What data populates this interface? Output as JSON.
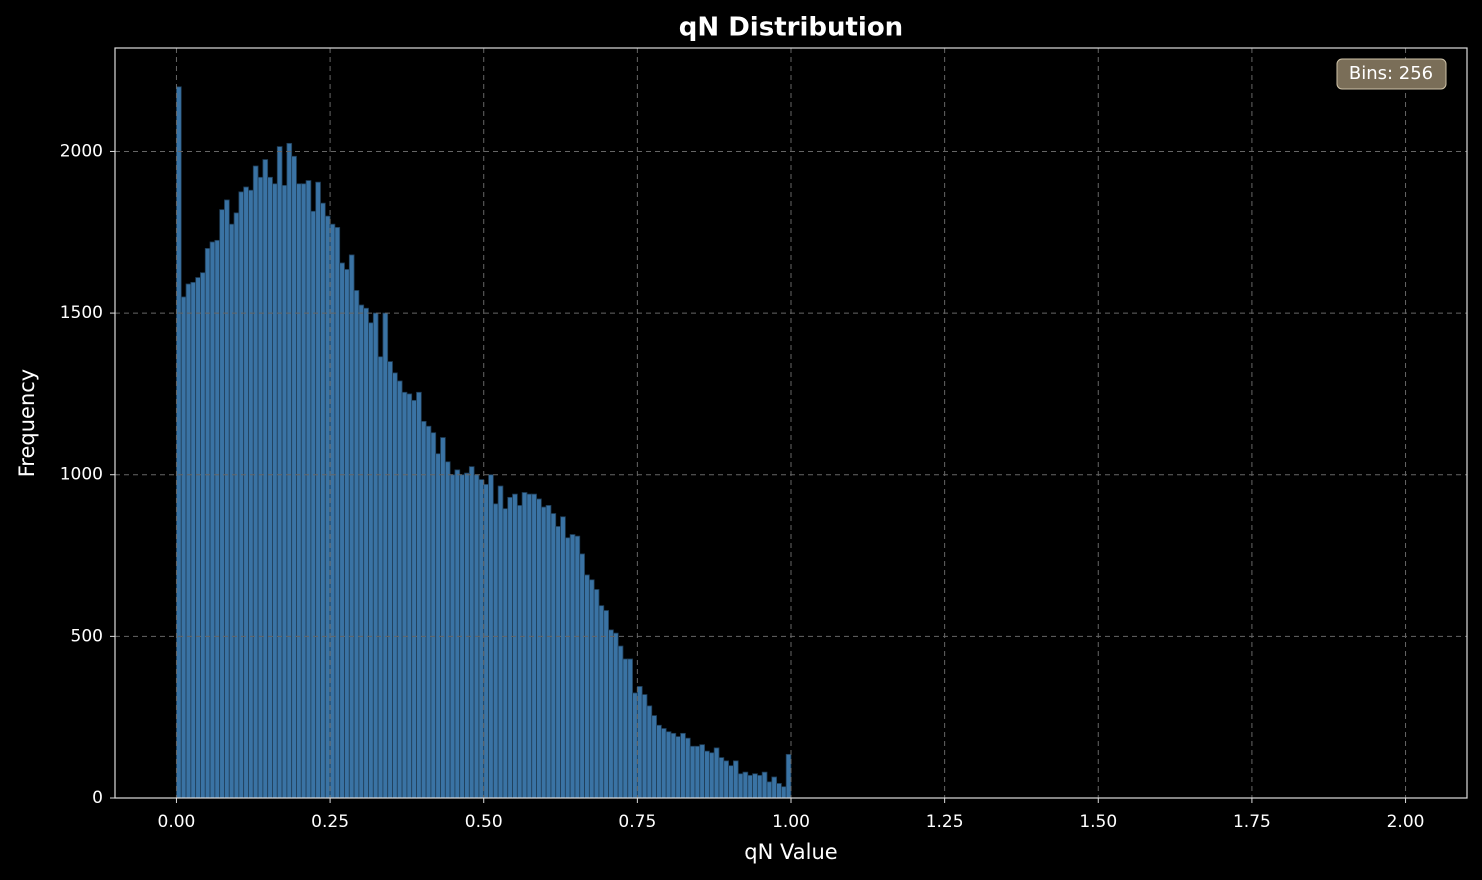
{
  "chart_data": {
    "type": "histogram",
    "title": "qN Distribution",
    "xlabel": "qN Value",
    "ylabel": "Frequency",
    "annotation": "Bins: 256",
    "color": "#3a73a4",
    "edgecolor": "#1f3d57",
    "grid": true,
    "bins": [
      0,
      0.0078125,
      0.015625,
      0.0234375,
      0.03125,
      0.0390625,
      0.046875,
      0.0546875,
      0.0625,
      0.0703125,
      0.078125,
      0.0859375,
      0.09375,
      0.1015625,
      0.109375,
      0.1171875,
      0.125,
      0.1328125,
      0.140625,
      0.1484375,
      0.15625,
      0.1640625,
      0.171875,
      0.1796875,
      0.1875,
      0.1953125,
      0.203125,
      0.2109375,
      0.21875,
      0.2265625,
      0.234375,
      0.2421875,
      0.25,
      0.2578125,
      0.265625,
      0.2734375,
      0.28125,
      0.2890625,
      0.296875,
      0.3046875,
      0.3125,
      0.3203125,
      0.328125,
      0.3359375,
      0.34375,
      0.3515625,
      0.359375,
      0.3671875,
      0.375,
      0.3828125,
      0.390625,
      0.3984375,
      0.40625,
      0.4140625,
      0.421875,
      0.4296875,
      0.4375,
      0.4453125,
      0.453125,
      0.4609375,
      0.46875,
      0.4765625,
      0.484375,
      0.4921875,
      0.5,
      0.5078125,
      0.515625,
      0.5234375,
      0.53125,
      0.5390625,
      0.546875,
      0.5546875,
      0.5625,
      0.5703125,
      0.578125,
      0.5859375,
      0.59375,
      0.6015625,
      0.609375,
      0.6171875,
      0.625,
      0.6328125,
      0.640625,
      0.6484375,
      0.65625,
      0.6640625,
      0.671875,
      0.6796875,
      0.6875,
      0.6953125,
      0.703125,
      0.7109375,
      0.71875,
      0.7265625,
      0.734375,
      0.7421875,
      0.75,
      0.7578125,
      0.765625,
      0.7734375,
      0.78125,
      0.7890625,
      0.796875,
      0.8046875,
      0.8125,
      0.8203125,
      0.828125,
      0.8359375,
      0.84375,
      0.8515625,
      0.859375,
      0.8671875,
      0.875,
      0.8828125,
      0.890625,
      0.8984375,
      0.90625,
      0.9140625,
      0.921875,
      0.9296875,
      0.9375,
      0.9453125,
      0.953125,
      0.9609375,
      0.96875,
      0.9765625,
      0.984375,
      0.9921875,
      1
    ],
    "values": [
      2200,
      1550,
      1590,
      1595,
      1610,
      1625,
      1700,
      1720,
      1725,
      1820,
      1850,
      1775,
      1810,
      1875,
      1890,
      1880,
      1955,
      1920,
      1975,
      1920,
      1900,
      2015,
      1895,
      2025,
      1985,
      1900,
      1900,
      1910,
      1815,
      1905,
      1840,
      1800,
      1775,
      1765,
      1655,
      1635,
      1680,
      1570,
      1525,
      1515,
      1470,
      1500,
      1365,
      1500,
      1350,
      1315,
      1290,
      1255,
      1250,
      1230,
      1255,
      1165,
      1150,
      1130,
      1065,
      1115,
      1040,
      1000,
      1015,
      1000,
      1005,
      1025,
      1000,
      985,
      970,
      1000,
      910,
      965,
      895,
      930,
      940,
      905,
      945,
      940,
      940,
      925,
      900,
      905,
      880,
      840,
      870,
      805,
      815,
      810,
      755,
      690,
      675,
      645,
      595,
      580,
      520,
      510,
      470,
      430,
      430,
      325,
      345,
      320,
      285,
      255,
      225,
      215,
      205,
      200,
      190,
      200,
      185,
      160,
      160,
      165,
      145,
      140,
      155,
      125,
      115,
      100,
      115,
      75,
      80,
      70,
      75,
      70,
      80,
      50,
      65,
      45,
      35,
      135
    ],
    "xlim": [
      -0.1,
      2.1
    ],
    "ylim": [
      0,
      2320
    ],
    "xticks": [
      {
        "value": 0,
        "label": "0.00"
      },
      {
        "value": 0.25,
        "label": "0.25"
      },
      {
        "value": 0.5,
        "label": "0.50"
      },
      {
        "value": 0.75,
        "label": "0.75"
      },
      {
        "value": 1,
        "label": "1.00"
      },
      {
        "value": 1.25,
        "label": "1.25"
      },
      {
        "value": 1.5,
        "label": "1.50"
      },
      {
        "value": 1.75,
        "label": "1.75"
      },
      {
        "value": 2,
        "label": "2.00"
      }
    ],
    "yticks": [
      0,
      500,
      1000,
      1500,
      2000
    ]
  }
}
